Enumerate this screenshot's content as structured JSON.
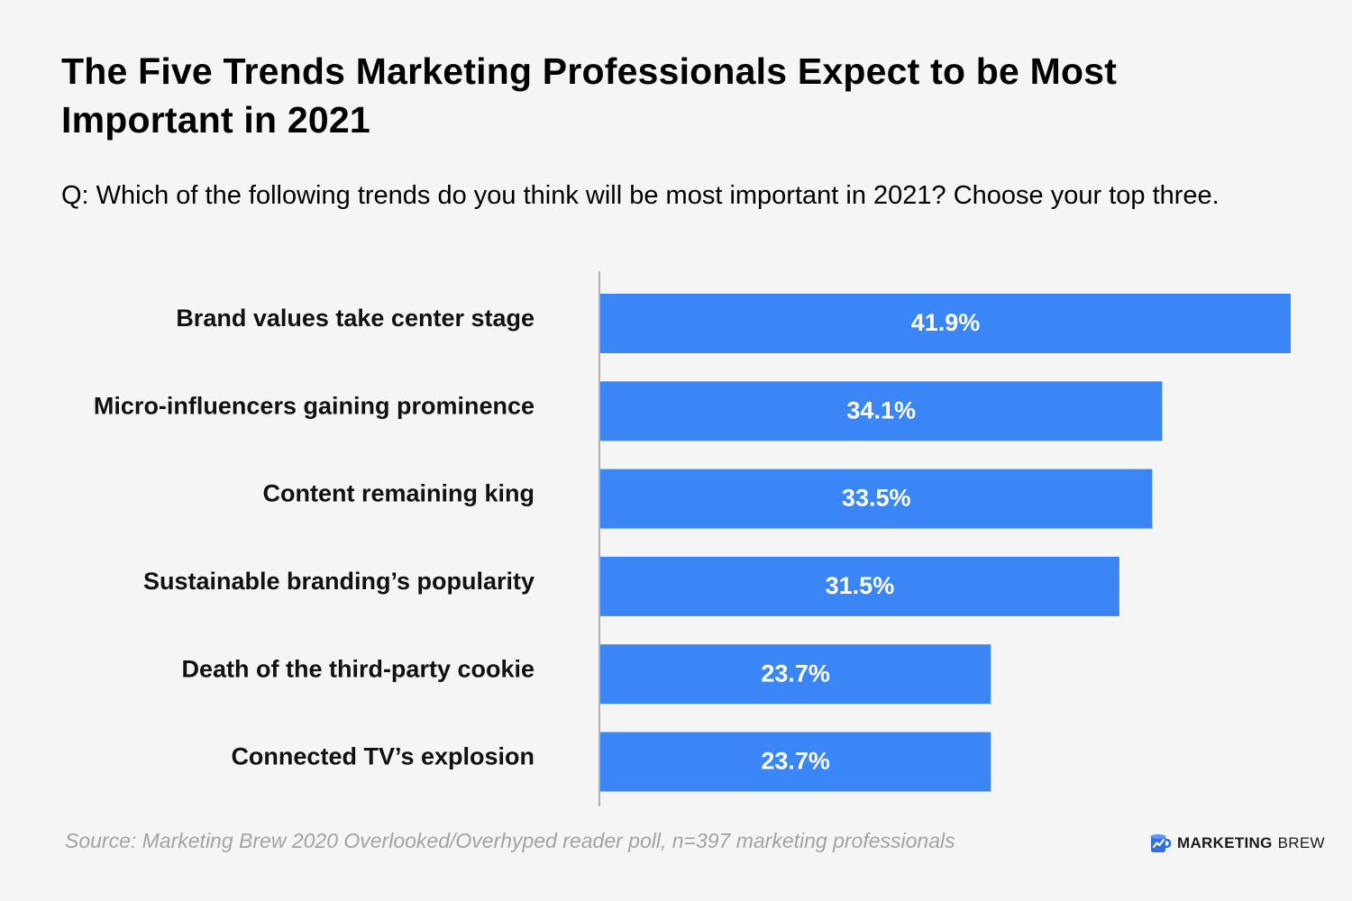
{
  "title": "The Five Trends Marketing Professionals Expect to be Most Important in 2021",
  "question": "Q: Which of the following trends do you think will be most important in 2021? Choose your top three.",
  "source": "Source: Marketing Brew 2020 Overlooked/Overhyped reader poll, n=397 marketing professionals",
  "brand": {
    "bold": "Marketing",
    "light": "Brew",
    "logo_icon": "brew-mug-chart-icon"
  },
  "colors": {
    "bar": "#3b86f7",
    "background": "#f5f5f5",
    "axis": "#9a9a9a",
    "source_text": "#a3a3a3"
  },
  "chart_data": {
    "type": "bar",
    "orientation": "horizontal",
    "categories": [
      "Brand values take center stage",
      "Micro-influencers gaining prominence",
      "Content remaining king",
      "Sustainable branding’s popularity",
      "Death of the third-party cookie",
      "Connected TV’s explosion"
    ],
    "values": [
      41.9,
      34.1,
      33.5,
      31.5,
      23.7,
      23.7
    ],
    "value_labels": [
      "41.9%",
      "34.1%",
      "33.5%",
      "31.5%",
      "23.7%",
      "23.7%"
    ],
    "xlim": [
      0,
      41.9
    ],
    "grid": false
  }
}
